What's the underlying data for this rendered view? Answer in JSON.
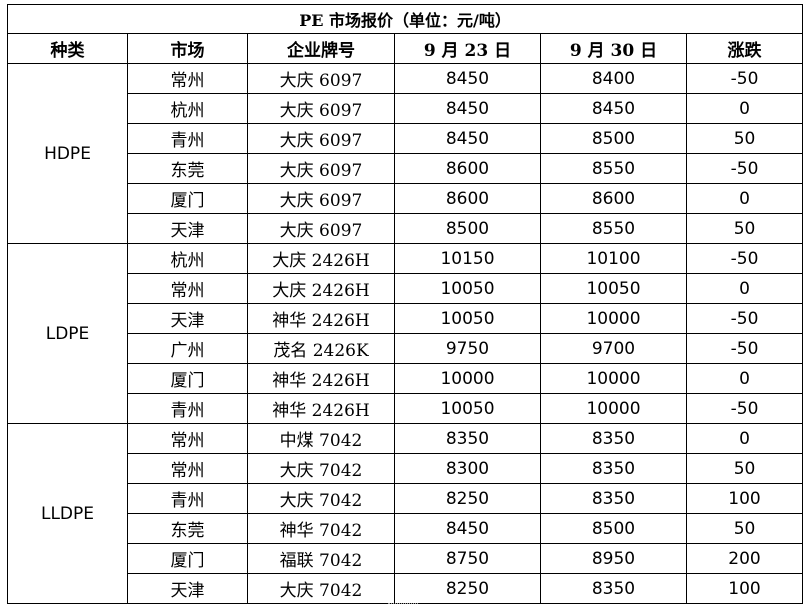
{
  "title": "PE 市场报价（单位：元/吨）",
  "headers": [
    "种类",
    "市场",
    "企业牌号",
    "9 月 23 日",
    "9 月 30 日",
    "涨跌"
  ],
  "groups": [
    {
      "category": "HDPE",
      "rows": [
        {
          "market": "常州",
          "brand": "大庆 6097",
          "sep23": "8450",
          "sep30": "8400",
          "change": "-50"
        },
        {
          "market": "杭州",
          "brand": "大庆 6097",
          "sep23": "8450",
          "sep30": "8450",
          "change": "0"
        },
        {
          "market": "青州",
          "brand": "大庆 6097",
          "sep23": "8450",
          "sep30": "8500",
          "change": "50"
        },
        {
          "market": "东莞",
          "brand": "大庆 6097",
          "sep23": "8600",
          "sep30": "8550",
          "change": "-50"
        },
        {
          "market": "厦门",
          "brand": "大庆 6097",
          "sep23": "8600",
          "sep30": "8600",
          "change": "0"
        },
        {
          "market": "天津",
          "brand": "大庆 6097",
          "sep23": "8500",
          "sep30": "8550",
          "change": "50"
        }
      ]
    },
    {
      "category": "LDPE",
      "rows": [
        {
          "market": "杭州",
          "brand": "大庆 2426H",
          "sep23": "10150",
          "sep30": "10100",
          "change": "-50"
        },
        {
          "market": "常州",
          "brand": "大庆 2426H",
          "sep23": "10050",
          "sep30": "10050",
          "change": "0"
        },
        {
          "market": "天津",
          "brand": "神华 2426H",
          "sep23": "10050",
          "sep30": "10000",
          "change": "-50"
        },
        {
          "market": "广州",
          "brand": "茂名 2426K",
          "sep23": "9750",
          "sep30": "9700",
          "change": "-50"
        },
        {
          "market": "厦门",
          "brand": "神华 2426H",
          "sep23": "10000",
          "sep30": "10000",
          "change": "0"
        },
        {
          "market": "青州",
          "brand": "神华 2426H",
          "sep23": "10050",
          "sep30": "10000",
          "change": "-50"
        }
      ]
    },
    {
      "category": "LLDPE",
      "rows": [
        {
          "market": "常州",
          "brand": "中煤 7042",
          "sep23": "8350",
          "sep30": "8350",
          "change": "0"
        },
        {
          "market": "常州",
          "brand": "大庆 7042",
          "sep23": "8300",
          "sep30": "8350",
          "change": "50"
        },
        {
          "market": "青州",
          "brand": "大庆 7042",
          "sep23": "8250",
          "sep30": "8350",
          "change": "100"
        },
        {
          "market": "东莞",
          "brand": "神华 7042",
          "sep23": "8450",
          "sep30": "8500",
          "change": "50"
        },
        {
          "market": "厦门",
          "brand": "福联 7042",
          "sep23": "8750",
          "sep30": "8950",
          "change": "200"
        },
        {
          "market": "天津",
          "brand": "大庆 7042",
          "sep23": "8250",
          "sep30": "8350",
          "change": "100"
        }
      ]
    }
  ]
}
